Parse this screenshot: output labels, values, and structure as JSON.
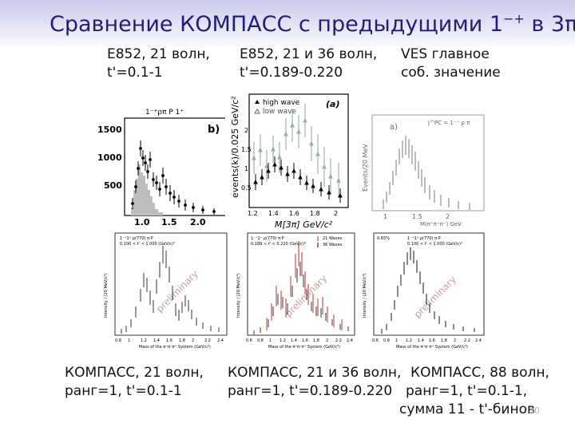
{
  "slide": {
    "title_main": "Сравнение КОМПАСС с предыдущими 1",
    "title_sup": "−+",
    "title_tail": " в 3π",
    "page_number": "30"
  },
  "top_captions": [
    {
      "line1": "E852, 21 волн,",
      "line2": "t'=0.1-1"
    },
    {
      "line1": "E852, 21 и 36 волн,",
      "line2": "t'=0.189-0.220"
    },
    {
      "line1": "VES главное",
      "line2": "соб. значение"
    }
  ],
  "bottom_captions": [
    {
      "line1": "КОМПАСС, 21 волн,",
      "line2": "ранг=1, t'=0.1-1",
      "line3": ""
    },
    {
      "line1": "КОМПАСС, 21 и 36 волн,",
      "line2": "ранг=1, t'=0.189-0.220",
      "line3": ""
    },
    {
      "line1": "КОМПАСС, 88 волн,",
      "line2": "ранг=1, t'=0.1-1,",
      "line3": "сумма 11 - t'-бинов"
    }
  ],
  "plot_e852_21": {
    "header": "1⁻⁺ρπ P 1⁺",
    "panel_tag": "b)",
    "y_ticks": [
      "1500",
      "1000",
      "500"
    ],
    "x_ticks": [
      "1.0",
      "1.5",
      "2.0"
    ]
  },
  "plot_e852_36": {
    "panel_tag": "(a)",
    "legend_high": "high wave",
    "legend_low": "low wave",
    "y_label": "events(k)/0.025 GeV/c²",
    "x_label": "M[3π] GeV/c²",
    "y_ticks": [
      "2",
      "1.5",
      "1",
      "0.5"
    ],
    "x_ticks": [
      "1.2",
      "1.4",
      "1.6",
      "1.8",
      "2"
    ]
  },
  "plot_ves": {
    "panel_tag": "a)",
    "header": "J^PC = 1⁻⁺ ρ π",
    "y_label": "Events/20 MeV",
    "x_label": "M(π⁺π⁻π⁻) GeV",
    "x_ticks": [
      "1",
      "1.5",
      "2"
    ]
  },
  "plot_compass_21": {
    "hdr1": "1⁻⁺1⁺ ρ(770) π P",
    "hdr2": "0.100 < t' < 1.000 (GeV/c)²",
    "watermark": "preliminary",
    "y_label": "Intensity / (20 MeV/c²)",
    "x_label": "Mass of the π⁻π⁻π⁺ System (GeV/c²)",
    "x_ticks": [
      "0.8",
      "1",
      "1.2",
      "1.4",
      "1.6",
      "1.8",
      "2",
      "2.2",
      "2.4"
    ]
  },
  "plot_compass_36": {
    "hdr1": "1⁻⁺1⁺ ρ(770) π P",
    "hdr2": "0.189 < t' < 0.220 (GeV/c)²",
    "legend_21": "21 Waves",
    "legend_36": "36 Waves",
    "watermark": "preliminary",
    "y_label": "Intensity / (20 MeV/c²)",
    "x_label": "Mass of the π⁻π⁻π⁺ System (GeV/c²)",
    "x_ticks": [
      "0.6",
      "0.8",
      "1",
      "1.2",
      "1.4",
      "1.6",
      "1.8",
      "2",
      "2.2",
      "2.4"
    ]
  },
  "plot_compass_88": {
    "hdr0": "0.65%",
    "hdr1": "1⁻⁺1⁺ ρ(770) π P",
    "hdr2": "0.100 < t' < 1.000 (GeV/c)²",
    "watermark": "preliminary",
    "y_label": "Intensity / (20 MeV/c²)",
    "x_label": "Mass of the π⁻π⁻π⁺ System (GeV/c²)",
    "x_ticks": [
      "0.6",
      "0.8",
      "1",
      "1.2",
      "1.4",
      "1.6",
      "1.8",
      "2",
      "2.2",
      "2.4"
    ]
  },
  "style": {
    "title_color": "#1f1f7a",
    "hist_fill": "#bdbdbd",
    "compass_red": "#b02020",
    "low_wave_color": "#8aa0a0"
  }
}
